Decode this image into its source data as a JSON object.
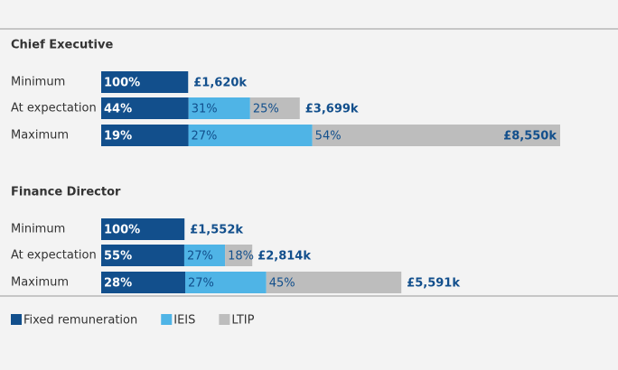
{
  "chart_data": {
    "type": "stacked-barh",
    "series": [
      {
        "name": "Fixed remuneration",
        "color": "#124f8c"
      },
      {
        "name": "IEIS",
        "color": "#4fb4e6"
      },
      {
        "name": "LTIP",
        "color": "#bdbdbd"
      }
    ],
    "groups": [
      {
        "title": "Chief Executive",
        "categories": [
          "Minimum",
          "At expectation",
          "Maximum"
        ],
        "values": [
          [
            100
          ],
          [
            44,
            31,
            25
          ],
          [
            19,
            27,
            54
          ]
        ],
        "value_labels": [
          [
            "100%"
          ],
          [
            "44%",
            "31%",
            "25%"
          ],
          [
            "19%",
            "27%",
            "54%"
          ]
        ],
        "totals": [
          1620,
          3699,
          8550
        ],
        "total_labels": [
          "£1,620k",
          "£3,699k",
          "£8,550k"
        ]
      },
      {
        "title": "Finance Director",
        "categories": [
          "Minimum",
          "At expectation",
          "Maximum"
        ],
        "values": [
          [
            100
          ],
          [
            55,
            27,
            18
          ],
          [
            28,
            27,
            45
          ]
        ],
        "value_labels": [
          [
            "100%"
          ],
          [
            "55%",
            "27%",
            "18%"
          ],
          [
            "28%",
            "27%",
            "45%"
          ]
        ],
        "totals": [
          1552,
          2814,
          5591
        ],
        "total_labels": [
          "£1,552k",
          "£2,814k",
          "£5,591k"
        ]
      }
    ]
  }
}
